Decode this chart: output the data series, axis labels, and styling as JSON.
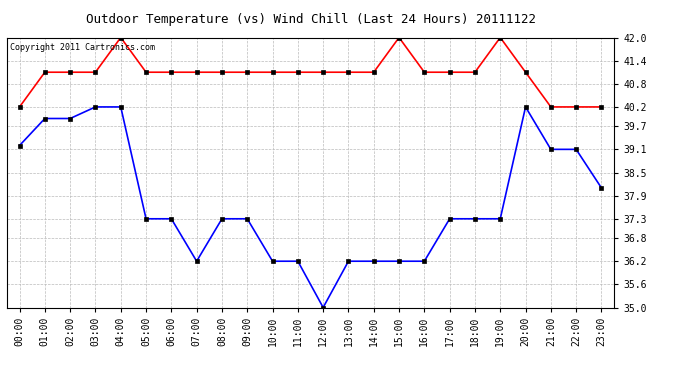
{
  "title": "Outdoor Temperature (vs) Wind Chill (Last 24 Hours) 20111122",
  "copyright": "Copyright 2011 Cartronics.com",
  "hours": [
    "00:00",
    "01:00",
    "02:00",
    "03:00",
    "04:00",
    "05:00",
    "06:00",
    "07:00",
    "08:00",
    "09:00",
    "10:00",
    "11:00",
    "12:00",
    "13:00",
    "14:00",
    "15:00",
    "16:00",
    "17:00",
    "18:00",
    "19:00",
    "20:00",
    "21:00",
    "22:00",
    "23:00"
  ],
  "temp": [
    40.2,
    41.1,
    41.1,
    41.1,
    42.0,
    41.1,
    41.1,
    41.1,
    41.1,
    41.1,
    41.1,
    41.1,
    41.1,
    41.1,
    41.1,
    42.0,
    41.1,
    41.1,
    41.1,
    42.0,
    41.1,
    40.2,
    40.2,
    40.2
  ],
  "wind_chill": [
    39.2,
    39.9,
    39.9,
    40.2,
    40.2,
    37.3,
    37.3,
    36.2,
    37.3,
    37.3,
    36.2,
    36.2,
    35.0,
    36.2,
    36.2,
    36.2,
    36.2,
    37.3,
    37.3,
    37.3,
    40.2,
    39.1,
    39.1,
    38.1
  ],
  "temp_color": "#ff0000",
  "wind_chill_color": "#0000ff",
  "bg_color": "#ffffff",
  "grid_color": "#bbbbbb",
  "ylim": [
    35.0,
    42.0
  ],
  "yticks": [
    35.0,
    35.6,
    36.2,
    36.8,
    37.3,
    37.9,
    38.5,
    39.1,
    39.7,
    40.2,
    40.8,
    41.4,
    42.0
  ],
  "title_fontsize": 9,
  "copyright_fontsize": 6,
  "tick_fontsize": 7,
  "marker": "s",
  "marker_size": 2.5,
  "linewidth": 1.2
}
